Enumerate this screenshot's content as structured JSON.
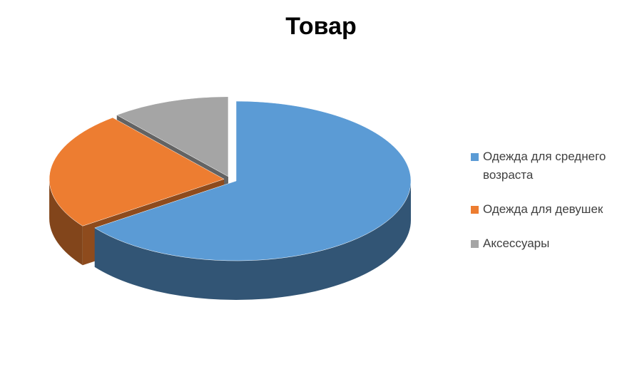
{
  "chart_data": {
    "type": "pie",
    "title": "Товар",
    "categories": [
      "Одежда для среднего возраста",
      "Одежда для девушек",
      "Аксессуары"
    ],
    "values": [
      65,
      24,
      11
    ],
    "colors": [
      "#5b9bd5",
      "#ed7d31",
      "#a5a5a5"
    ],
    "legend": "right"
  }
}
